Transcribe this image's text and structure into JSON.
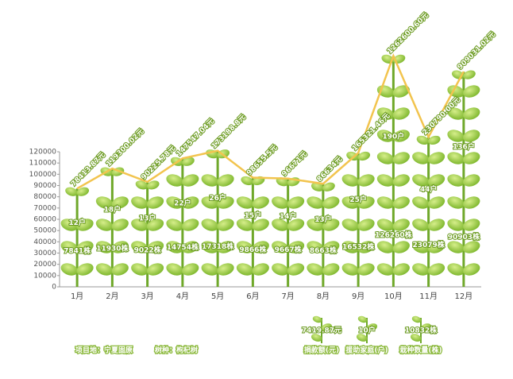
{
  "chart_data": {
    "type": "plant",
    "categories": [
      "1月",
      "2月",
      "3月",
      "4月",
      "5月",
      "6月",
      "7月",
      "8月",
      "9月",
      "10月",
      "11月",
      "12月"
    ],
    "ylim": [
      0,
      120000
    ],
    "yticks": [
      0,
      10000,
      20000,
      30000,
      40000,
      50000,
      60000,
      70000,
      80000,
      90000,
      100000,
      110000,
      120000
    ],
    "y2lim": [
      10000,
      1500000
    ],
    "y2log": true,
    "series": [
      {
        "name": "捐款额(元)",
        "color": "#f2c44e",
        "axis": "y2",
        "values": [
          78413.87,
          119300.02,
          90225.78,
          147547.04,
          173188.8,
          98655.5,
          96671,
          86634,
          165321.46,
          1262600.6,
          230790,
          909031.02
        ],
        "value_labels": [
          "78413.87元",
          "119300.02元",
          "90225.78元",
          "147547.04元",
          "173188.8元",
          "98655.5元",
          "96671元",
          "86634元",
          "165321.46元",
          "1262600.60元",
          "230790.00元",
          "909031.02元"
        ]
      },
      {
        "name": "援助家庭(户)",
        "color": "#ffffff",
        "values": [
          12,
          18,
          13,
          22,
          26,
          15,
          14,
          13,
          25,
          190,
          44,
          136
        ],
        "value_labels": [
          "12户",
          "18户",
          "13户",
          "22户",
          "26户",
          "15户",
          "14户",
          "13户",
          "25户",
          "190户",
          "44户",
          "136户"
        ]
      },
      {
        "name": "栽种数量(株)",
        "color": "#ffffff",
        "values": [
          7841,
          11930,
          9022,
          14754,
          17318,
          9866,
          9667,
          8663,
          16532,
          126260,
          23079,
          90903
        ],
        "value_labels": [
          "7841株",
          "11930株",
          "9022株",
          "14754株",
          "17318株",
          "9866株",
          "9667株",
          "8663株",
          "16532株",
          "126260株",
          "23079株",
          "90903株"
        ]
      }
    ],
    "legend_samples": [
      "7419.87元",
      "10户",
      "10832株"
    ],
    "notes": [
      "项目地：宁夏固原",
      "树种：枸杞树"
    ]
  }
}
